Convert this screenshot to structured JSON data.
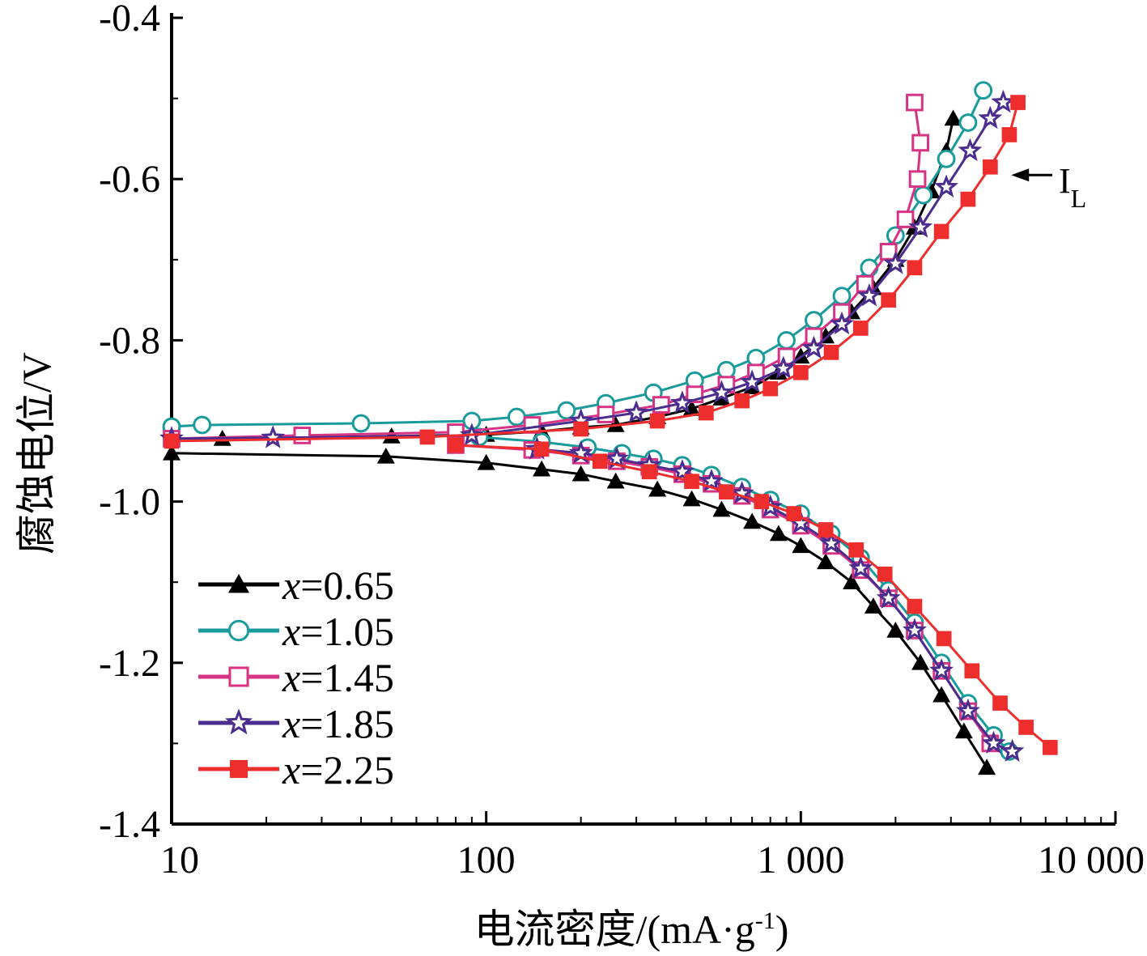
{
  "chart_data": {
    "type": "line",
    "title": "",
    "xlabel": "电流密度/(mA·g",
    "xlabel_sup": "-1",
    "xlabel_end": ")",
    "ylabel": "腐蚀电位/V",
    "x_scale": "log",
    "xlim": [
      10,
      10000
    ],
    "ylim": [
      -1.4,
      -0.4
    ],
    "x_ticks": [
      10,
      100,
      1000,
      10000
    ],
    "x_tick_labels": [
      "10",
      "100",
      "1 000",
      "10 000"
    ],
    "y_ticks": [
      -0.4,
      -0.6,
      -0.8,
      -1.0,
      -1.2,
      -1.4
    ],
    "y_tick_labels": [
      "-0.4",
      "-0.6",
      "-0.8",
      "-1.0",
      "-1.2",
      "-1.4"
    ],
    "grid": false,
    "legend_position": "bottom-left",
    "legend_var": "x",
    "annotation": {
      "text": "I",
      "sub": "L",
      "points_to": [
        4500,
        -0.595
      ]
    },
    "series": [
      {
        "name": "=0.65",
        "color": "#000000",
        "marker": "triangle",
        "anodic": [
          [
            14.5,
            -0.922
          ],
          [
            50,
            -0.919
          ],
          [
            100,
            -0.917
          ],
          [
            150,
            -0.913
          ],
          [
            200,
            -0.908
          ],
          [
            258,
            -0.905
          ],
          [
            350,
            -0.895
          ],
          [
            450,
            -0.885
          ],
          [
            560,
            -0.872
          ],
          [
            700,
            -0.858
          ],
          [
            850,
            -0.84
          ],
          [
            1000,
            -0.82
          ],
          [
            1200,
            -0.795
          ],
          [
            1450,
            -0.765
          ],
          [
            1700,
            -0.735
          ],
          [
            2000,
            -0.7
          ],
          [
            2300,
            -0.66
          ],
          [
            2600,
            -0.615
          ],
          [
            2900,
            -0.565
          ],
          [
            3050,
            -0.525
          ]
        ],
        "cathodic": [
          [
            10,
            -0.94
          ],
          [
            48,
            -0.944
          ],
          [
            100,
            -0.952
          ],
          [
            150,
            -0.96
          ],
          [
            200,
            -0.966
          ],
          [
            258,
            -0.975
          ],
          [
            350,
            -0.985
          ],
          [
            450,
            -0.997
          ],
          [
            560,
            -1.01
          ],
          [
            700,
            -1.025
          ],
          [
            850,
            -1.04
          ],
          [
            1000,
            -1.055
          ],
          [
            1200,
            -1.075
          ],
          [
            1450,
            -1.1
          ],
          [
            1700,
            -1.13
          ],
          [
            2000,
            -1.16
          ],
          [
            2400,
            -1.2
          ],
          [
            2800,
            -1.24
          ],
          [
            3300,
            -1.285
          ],
          [
            3900,
            -1.33
          ]
        ]
      },
      {
        "name": "=1.05",
        "color": "#1a9b9b",
        "marker": "circle",
        "anodic": [
          [
            10,
            -0.907
          ],
          [
            12.5,
            -0.905
          ],
          [
            40,
            -0.903
          ],
          [
            90,
            -0.9
          ],
          [
            125,
            -0.895
          ],
          [
            180,
            -0.887
          ],
          [
            240,
            -0.878
          ],
          [
            340,
            -0.865
          ],
          [
            460,
            -0.85
          ],
          [
            580,
            -0.837
          ],
          [
            720,
            -0.822
          ],
          [
            900,
            -0.8
          ],
          [
            1100,
            -0.775
          ],
          [
            1350,
            -0.745
          ],
          [
            1650,
            -0.71
          ],
          [
            2000,
            -0.67
          ],
          [
            2450,
            -0.62
          ],
          [
            2900,
            -0.575
          ],
          [
            3400,
            -0.53
          ],
          [
            3800,
            -0.49
          ]
        ],
        "cathodic": [
          [
            95,
            -0.92
          ],
          [
            150,
            -0.926
          ],
          [
            210,
            -0.933
          ],
          [
            270,
            -0.94
          ],
          [
            340,
            -0.947
          ],
          [
            420,
            -0.955
          ],
          [
            520,
            -0.967
          ],
          [
            650,
            -0.982
          ],
          [
            800,
            -0.998
          ],
          [
            1000,
            -1.015
          ],
          [
            1250,
            -1.04
          ],
          [
            1550,
            -1.07
          ],
          [
            1900,
            -1.11
          ],
          [
            2300,
            -1.15
          ],
          [
            2800,
            -1.2
          ],
          [
            3400,
            -1.25
          ],
          [
            4100,
            -1.29
          ],
          [
            4600,
            -1.31
          ]
        ]
      },
      {
        "name": "=1.45",
        "color": "#d63384",
        "marker": "square",
        "anodic": [
          [
            10,
            -0.922
          ],
          [
            26,
            -0.918
          ],
          [
            80,
            -0.914
          ],
          [
            140,
            -0.905
          ],
          [
            240,
            -0.892
          ],
          [
            360,
            -0.88
          ],
          [
            460,
            -0.867
          ],
          [
            580,
            -0.855
          ],
          [
            720,
            -0.84
          ],
          [
            900,
            -0.82
          ],
          [
            1100,
            -0.795
          ],
          [
            1350,
            -0.765
          ],
          [
            1600,
            -0.73
          ],
          [
            1900,
            -0.69
          ],
          [
            2150,
            -0.65
          ],
          [
            2350,
            -0.6
          ],
          [
            2400,
            -0.555
          ],
          [
            2300,
            -0.505
          ]
        ],
        "cathodic": [
          [
            80,
            -0.93
          ],
          [
            140,
            -0.936
          ],
          [
            200,
            -0.943
          ],
          [
            260,
            -0.95
          ],
          [
            330,
            -0.957
          ],
          [
            420,
            -0.966
          ],
          [
            520,
            -0.978
          ],
          [
            650,
            -0.993
          ],
          [
            800,
            -1.01
          ],
          [
            1000,
            -1.03
          ],
          [
            1250,
            -1.055
          ],
          [
            1550,
            -1.085
          ],
          [
            1900,
            -1.12
          ],
          [
            2300,
            -1.16
          ],
          [
            2800,
            -1.21
          ],
          [
            3400,
            -1.26
          ],
          [
            4000,
            -1.3
          ]
        ]
      },
      {
        "name": "=1.85",
        "color": "#4b2d8f",
        "marker": "star",
        "anodic": [
          [
            10,
            -0.922
          ],
          [
            21,
            -0.921
          ],
          [
            90,
            -0.918
          ],
          [
            200,
            -0.9
          ],
          [
            300,
            -0.89
          ],
          [
            420,
            -0.878
          ],
          [
            560,
            -0.865
          ],
          [
            700,
            -0.852
          ],
          [
            880,
            -0.835
          ],
          [
            1100,
            -0.81
          ],
          [
            1350,
            -0.78
          ],
          [
            1650,
            -0.745
          ],
          [
            2000,
            -0.705
          ],
          [
            2400,
            -0.66
          ],
          [
            2900,
            -0.61
          ],
          [
            3450,
            -0.565
          ],
          [
            4000,
            -0.525
          ],
          [
            4400,
            -0.505
          ]
        ],
        "cathodic": [
          [
            145,
            -0.935
          ],
          [
            200,
            -0.94
          ],
          [
            260,
            -0.947
          ],
          [
            330,
            -0.955
          ],
          [
            420,
            -0.963
          ],
          [
            520,
            -0.975
          ],
          [
            650,
            -0.99
          ],
          [
            800,
            -1.007
          ],
          [
            1000,
            -1.027
          ],
          [
            1250,
            -1.052
          ],
          [
            1550,
            -1.083
          ],
          [
            1900,
            -1.12
          ],
          [
            2300,
            -1.16
          ],
          [
            2800,
            -1.21
          ],
          [
            3400,
            -1.26
          ],
          [
            4100,
            -1.3
          ],
          [
            4700,
            -1.31
          ]
        ]
      },
      {
        "name": "=2.25",
        "color": "#ee2d2d",
        "marker": "square-filled",
        "anodic": [
          [
            10,
            -0.925
          ],
          [
            65,
            -0.92
          ],
          [
            200,
            -0.91
          ],
          [
            350,
            -0.9
          ],
          [
            500,
            -0.89
          ],
          [
            650,
            -0.875
          ],
          [
            800,
            -0.86
          ],
          [
            1000,
            -0.84
          ],
          [
            1250,
            -0.815
          ],
          [
            1550,
            -0.785
          ],
          [
            1900,
            -0.75
          ],
          [
            2300,
            -0.71
          ],
          [
            2800,
            -0.665
          ],
          [
            3400,
            -0.625
          ],
          [
            4000,
            -0.585
          ],
          [
            4600,
            -0.545
          ],
          [
            4900,
            -0.505
          ]
        ],
        "cathodic": [
          [
            80,
            -0.93
          ],
          [
            150,
            -0.935
          ],
          [
            230,
            -0.95
          ],
          [
            330,
            -0.963
          ],
          [
            450,
            -0.975
          ],
          [
            580,
            -0.988
          ],
          [
            750,
            -1.0
          ],
          [
            950,
            -1.015
          ],
          [
            1200,
            -1.035
          ],
          [
            1500,
            -1.06
          ],
          [
            1850,
            -1.09
          ],
          [
            2300,
            -1.13
          ],
          [
            2850,
            -1.17
          ],
          [
            3500,
            -1.21
          ],
          [
            4300,
            -1.25
          ],
          [
            5200,
            -1.28
          ],
          [
            6200,
            -1.305
          ]
        ]
      }
    ]
  }
}
